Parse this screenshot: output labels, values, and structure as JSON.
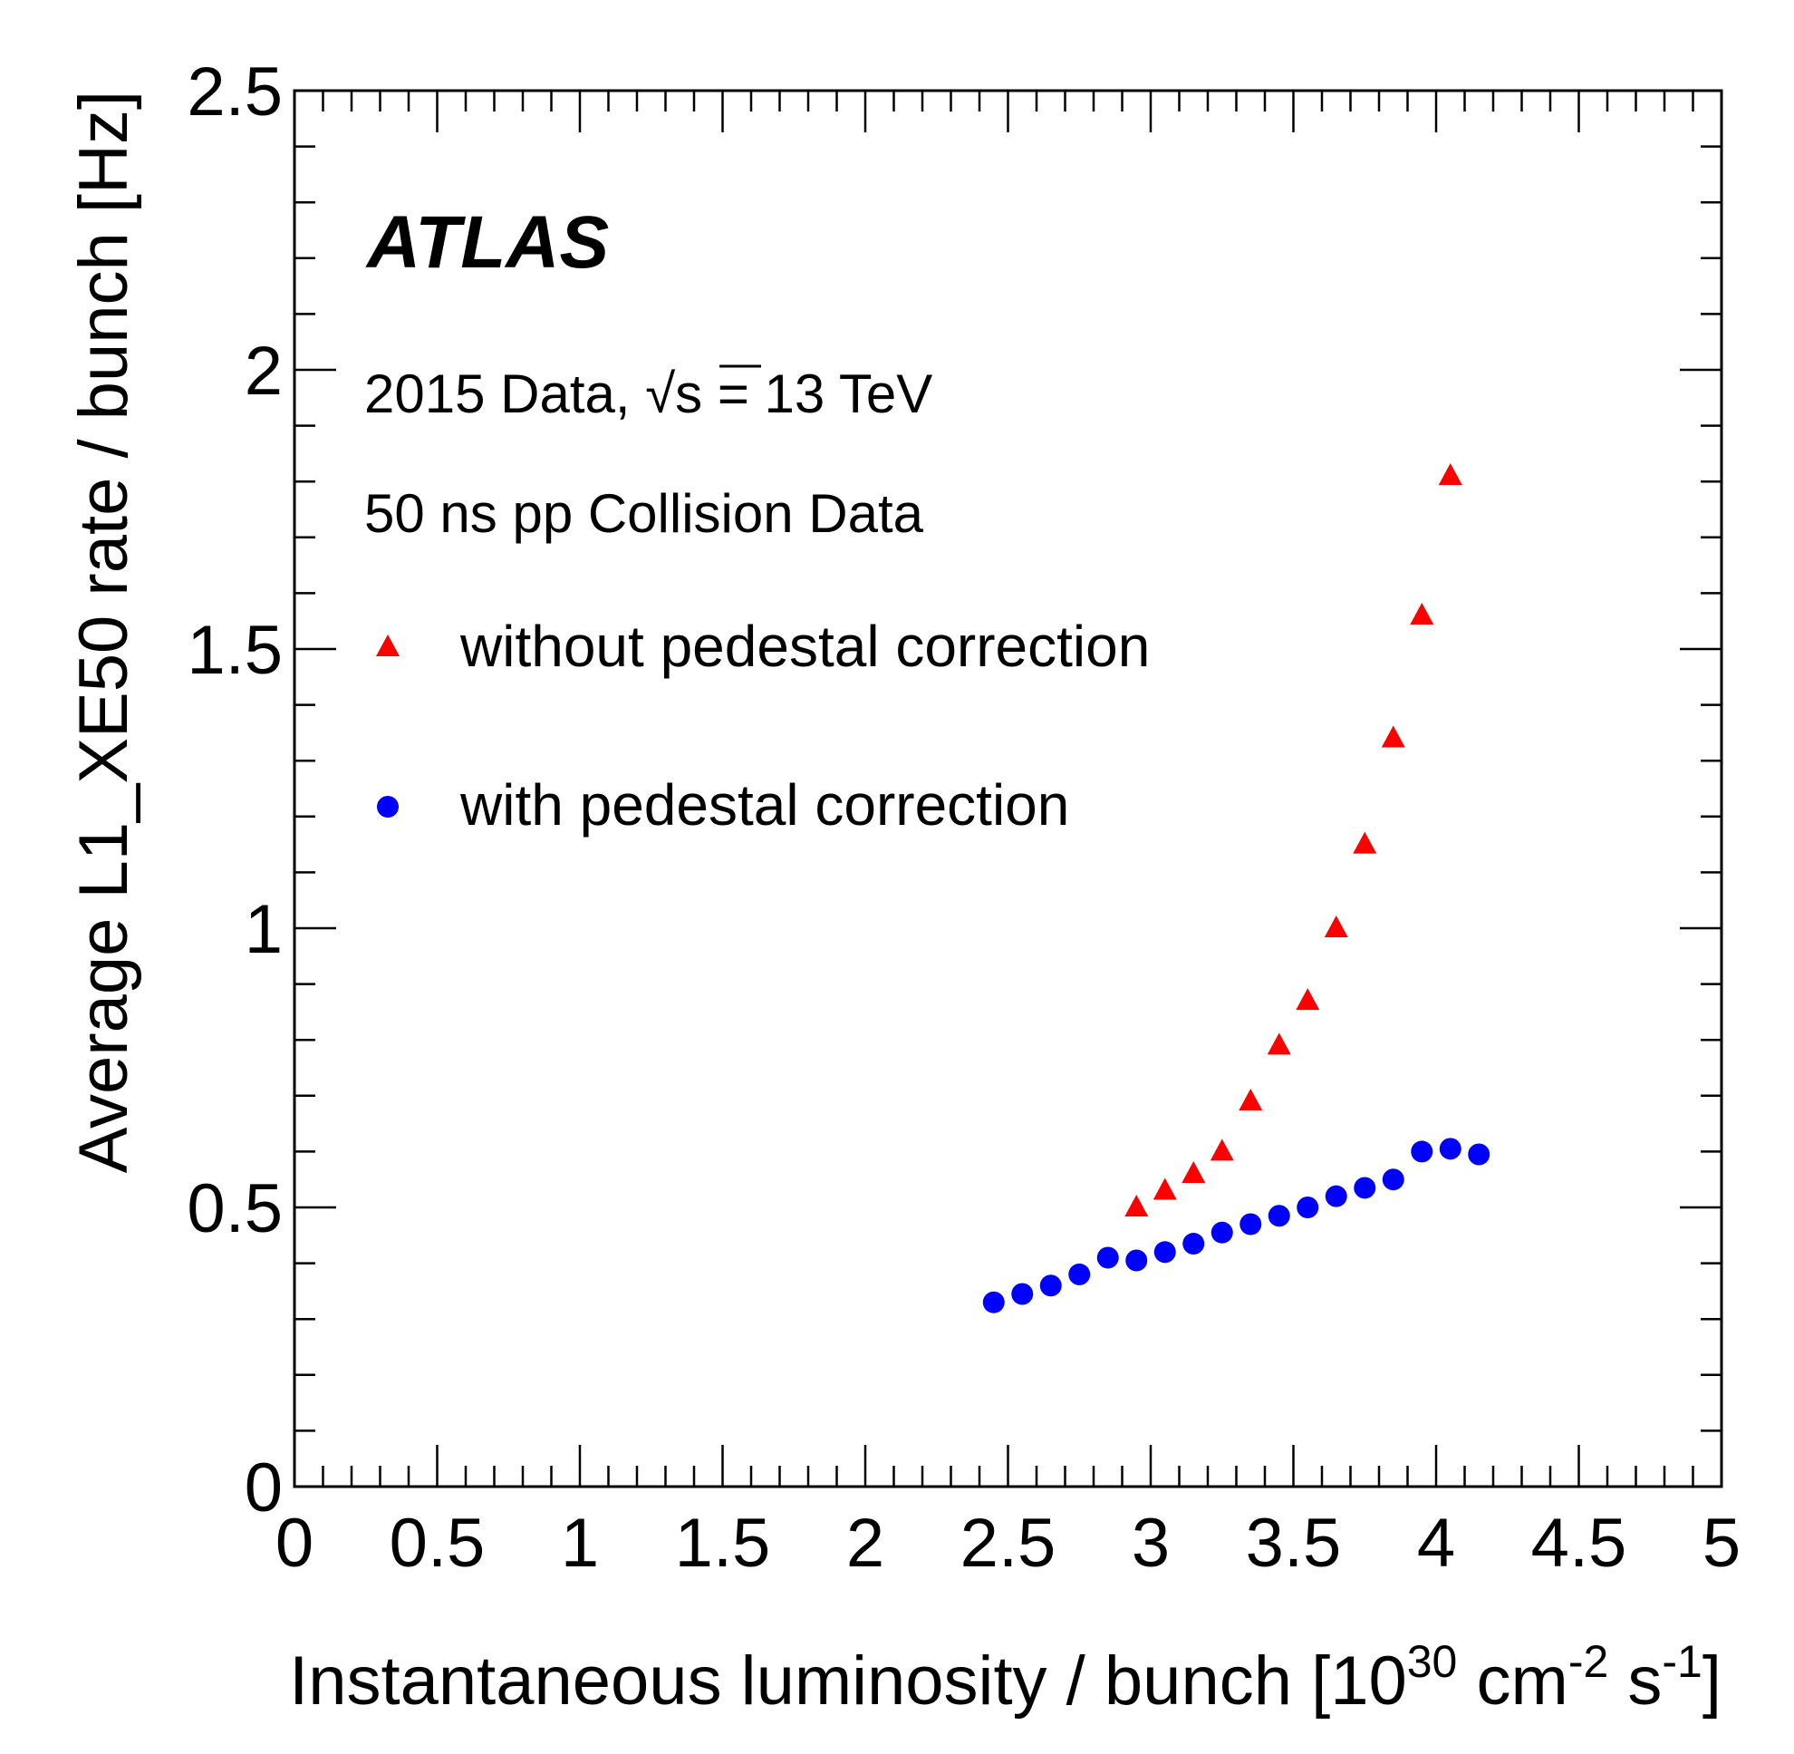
{
  "chart_data": {
    "type": "scatter",
    "title": "",
    "xlabel": {
      "prefix": "Instantaneous luminosity / bunch [10",
      "sup1": "30",
      "mid1": " cm",
      "sup2": "-2",
      "mid2": " s",
      "sup3": "-1",
      "suffix": "]"
    },
    "ylabel": "Average L1_XE50 rate / bunch [Hz]",
    "xlim": [
      0,
      5
    ],
    "ylim": [
      0,
      2.5
    ],
    "x_ticks": [
      "0",
      "0.5",
      "1",
      "1.5",
      "2",
      "2.5",
      "3",
      "3.5",
      "4",
      "4.5",
      "5"
    ],
    "y_ticks": [
      "0",
      "0.5",
      "1",
      "1.5",
      "2",
      "2.5"
    ],
    "grid": false,
    "annotations": {
      "experiment": "ATLAS",
      "line1_prefix": "2015 Data, ",
      "line1_sqrt": "√s",
      "line1_suffix": " = 13 TeV",
      "line2": "50 ns pp Collision Data"
    },
    "legend_position": "top-left",
    "series": [
      {
        "name": "without pedestal correction",
        "marker": "triangle",
        "color": "#ff0000",
        "points": [
          [
            2.95,
            0.5
          ],
          [
            3.05,
            0.53
          ],
          [
            3.15,
            0.56
          ],
          [
            3.25,
            0.6
          ],
          [
            3.35,
            0.69
          ],
          [
            3.45,
            0.79
          ],
          [
            3.55,
            0.87
          ],
          [
            3.65,
            1.0
          ],
          [
            3.75,
            1.15
          ],
          [
            3.85,
            1.34
          ],
          [
            3.95,
            1.56
          ],
          [
            4.05,
            1.81
          ]
        ]
      },
      {
        "name": "with pedestal correction",
        "marker": "circle",
        "color": "#0000ff",
        "points": [
          [
            2.45,
            0.33
          ],
          [
            2.55,
            0.345
          ],
          [
            2.65,
            0.36
          ],
          [
            2.75,
            0.38
          ],
          [
            2.85,
            0.41
          ],
          [
            2.95,
            0.405
          ],
          [
            3.05,
            0.42
          ],
          [
            3.15,
            0.435
          ],
          [
            3.25,
            0.455
          ],
          [
            3.35,
            0.47
          ],
          [
            3.45,
            0.485
          ],
          [
            3.55,
            0.5
          ],
          [
            3.65,
            0.52
          ],
          [
            3.75,
            0.535
          ],
          [
            3.85,
            0.55
          ],
          [
            3.95,
            0.6
          ],
          [
            4.05,
            0.605
          ],
          [
            4.15,
            0.595
          ]
        ]
      }
    ]
  }
}
